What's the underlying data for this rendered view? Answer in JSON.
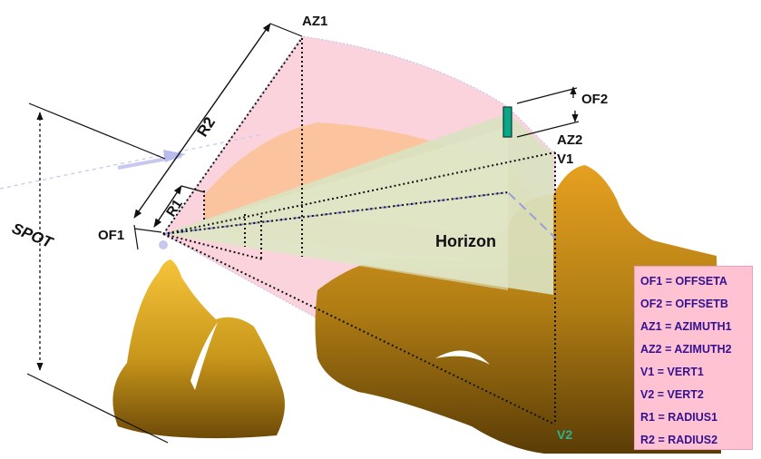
{
  "labels": {
    "az1": "AZ1",
    "r2": "R2",
    "r1": "R1",
    "of1": "OF1",
    "spot": "SPOT",
    "of2": "OF2",
    "az2": "AZ2",
    "v1": "V1",
    "v2": "V2",
    "horizon": "Horizon"
  },
  "legend": [
    "OF1 = OFFSETA",
    "OF2 = OFFSETB",
    "AZ1 = AZIMUTH1",
    "AZ2 = AZIMUTH2",
    "V1 = VERT1",
    "V2 = VERT2",
    "R1 = RADIUS1",
    "R2 = RADIUS2"
  ],
  "colors": {
    "sector_pink": "#fbd3dc",
    "sector_peach": "#fbc39a",
    "wedge_green": "#d9e2c0",
    "mountain_gold": "#c89a1a",
    "legend_bg": "#ffc2d3",
    "legend_text": "#34128f",
    "v2_green": "#2ab58d",
    "marker_teal": "#0aa888"
  }
}
